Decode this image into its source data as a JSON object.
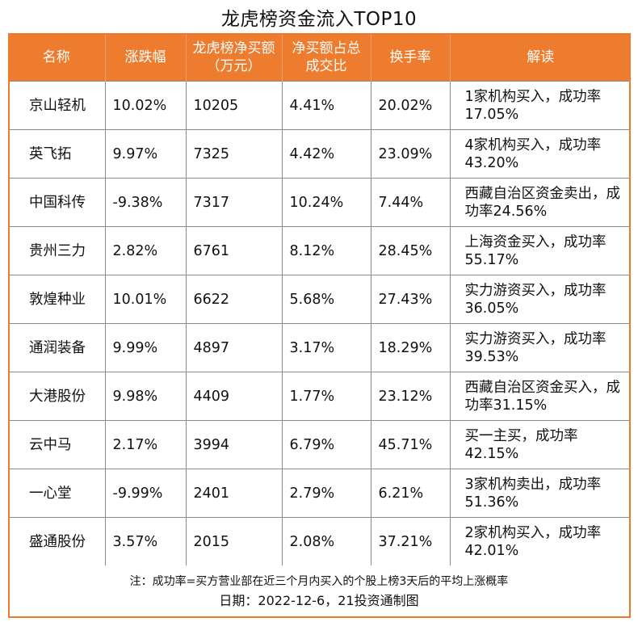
{
  "title": "龙虎榜资金流入TOP10",
  "headers": [
    "名称",
    "涨跌幅",
    "龙虎榜净买额（万元）",
    "净买额占总成交比",
    "换手率",
    "解读"
  ],
  "rows": [
    {
      "name": "京山轻机",
      "change": "10.02%",
      "net_buy": "10205",
      "ratio": "4.41%",
      "turnover": "20.02%",
      "desc": "1家机构买入，成功率17.05%"
    },
    {
      "name": "英飞拓",
      "change": "9.97%",
      "net_buy": "7325",
      "ratio": "4.42%",
      "turnover": "23.09%",
      "desc": "4家机构买入，成功率43.20%"
    },
    {
      "name": "中国科传",
      "change": "-9.38%",
      "net_buy": "7317",
      "ratio": "10.24%",
      "turnover": "7.44%",
      "desc": "西藏自治区资金卖出，成功率24.56%"
    },
    {
      "name": "贵州三力",
      "change": "2.82%",
      "net_buy": "6761",
      "ratio": "8.12%",
      "turnover": "28.45%",
      "desc": "上海资金买入，成功率55.17%"
    },
    {
      "name": "敦煌种业",
      "change": "10.01%",
      "net_buy": "6622",
      "ratio": "5.68%",
      "turnover": "27.43%",
      "desc": "实力游资买入，成功率36.05%"
    },
    {
      "name": "通润装备",
      "change": "9.99%",
      "net_buy": "4897",
      "ratio": "3.17%",
      "turnover": "18.29%",
      "desc": "实力游资买入，成功率39.53%"
    },
    {
      "name": "大港股份",
      "change": "9.98%",
      "net_buy": "4409",
      "ratio": "1.77%",
      "turnover": "23.12%",
      "desc": "西藏自治区资金买入，成功率31.15%"
    },
    {
      "name": "云中马",
      "change": "2.17%",
      "net_buy": "3994",
      "ratio": "6.79%",
      "turnover": "45.71%",
      "desc": "买一主买，成功率42.15%"
    },
    {
      "name": "一心堂",
      "change": "-9.99%",
      "net_buy": "2401",
      "ratio": "2.79%",
      "turnover": "6.21%",
      "desc": "3家机构卖出，成功率51.36%"
    },
    {
      "name": "盛通股份",
      "change": "3.57%",
      "net_buy": "2015",
      "ratio": "2.08%",
      "turnover": "37.21%",
      "desc": "2家机构买入，成功率42.01%"
    }
  ],
  "note": "注：成功率=买方营业部在近三个月内买入的个股上榜3天后的平均上涨概率",
  "date_line": "日期：2022-12-6，21投资通制图"
}
